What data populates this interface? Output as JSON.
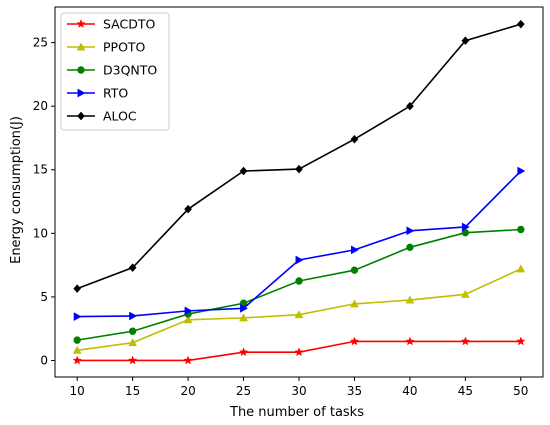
{
  "chart_data": {
    "type": "line",
    "title": "",
    "xlabel": "The number of tasks",
    "ylabel": "Energy consumption(J)",
    "x": [
      10,
      15,
      20,
      25,
      30,
      35,
      40,
      45,
      50
    ],
    "xlim": [
      8.0,
      52.0
    ],
    "ylim": [
      -1.3,
      27.8
    ],
    "xticks": [
      10,
      15,
      20,
      25,
      30,
      35,
      40,
      45,
      50
    ],
    "yticks": [
      0,
      5,
      10,
      15,
      20,
      25
    ],
    "grid": false,
    "legend_position": "upper left",
    "series": [
      {
        "name": "SACDTO",
        "color": "#ff0000",
        "marker": "star",
        "values": [
          0.0,
          0.0,
          0.0,
          0.65,
          0.65,
          1.5,
          1.5,
          1.5,
          1.5
        ]
      },
      {
        "name": "PPOTO",
        "color": "#bfbf00",
        "marker": "triangle-up",
        "values": [
          0.8,
          1.4,
          3.2,
          3.35,
          3.6,
          4.45,
          4.75,
          5.2,
          7.2
        ]
      },
      {
        "name": "D3QNTO",
        "color": "#008000",
        "marker": "circle",
        "values": [
          1.6,
          2.3,
          3.65,
          4.5,
          6.25,
          7.1,
          8.9,
          10.05,
          10.3
        ]
      },
      {
        "name": "RTO",
        "color": "#0000ff",
        "marker": "triangle-right",
        "values": [
          3.45,
          3.5,
          3.9,
          4.1,
          7.9,
          8.7,
          10.2,
          10.5,
          14.9
        ]
      },
      {
        "name": "ALOC",
        "color": "#000000",
        "marker": "diamond",
        "values": [
          5.65,
          7.3,
          11.9,
          14.9,
          15.05,
          17.4,
          20.0,
          25.15,
          26.45
        ]
      }
    ]
  }
}
